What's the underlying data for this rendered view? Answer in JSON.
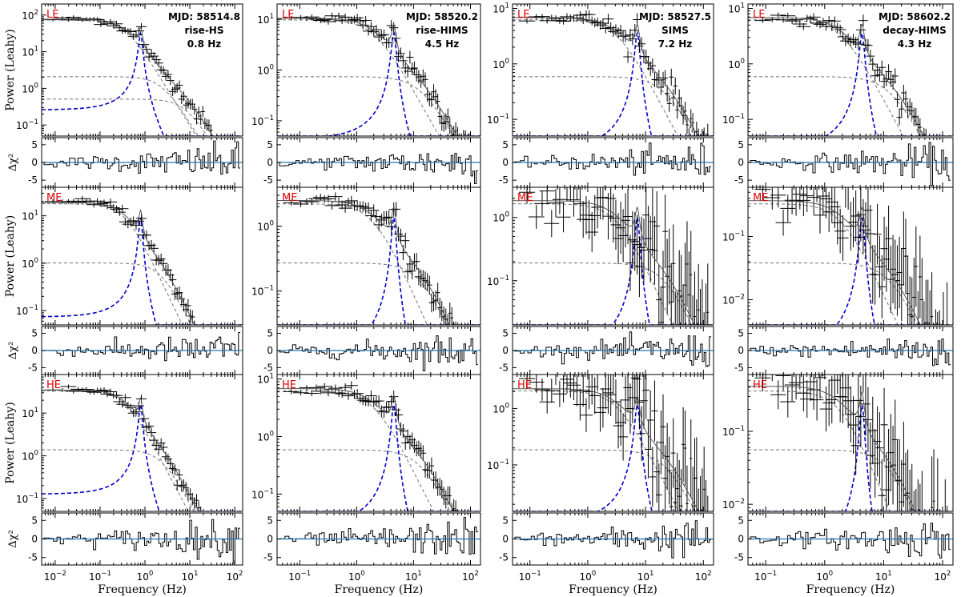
{
  "figure": {
    "columns": [
      {
        "mjd": "MJD: 58514.8",
        "state": "rise-HS",
        "freq": "0.8 Hz"
      },
      {
        "mjd": "MJD: 58520.2",
        "state": "rise-HIMS",
        "freq": "4.5 Hz"
      },
      {
        "mjd": "MJD: 58527.5",
        "state": "SIMS",
        "freq": "7.2 Hz"
      },
      {
        "mjd": "MJD: 58602.2",
        "state": "decay-HIMS",
        "freq": "4.3 Hz"
      }
    ],
    "rows": [
      "LE",
      "ME",
      "HE"
    ],
    "y_label": "Power (Leahy)",
    "resid_label": "Δχ²",
    "x_label": "Frequency (Hz)",
    "colors": {
      "data": "#000000",
      "model": "#808080",
      "qpo": "#0000cc",
      "zero_line": "#1f77b4",
      "row_label": "#dd0000"
    }
  },
  "chart_data": [
    {
      "type": "line",
      "instrument": "LE",
      "column": 1,
      "x_scale": "log",
      "y_scale": "log",
      "xlim": [
        0.005,
        150
      ],
      "ylim": [
        0.05,
        200
      ],
      "y_ticks": [
        "10^{-1}",
        "10^{0}",
        "10^{1}",
        "10^{2}"
      ],
      "x_ticks": [
        "10^{-2}",
        "10^{-1}",
        "10^{0}",
        "10^{1}",
        "10^{2}"
      ],
      "qpo_hz": 0.8,
      "resid_ylim": [
        -7,
        7
      ],
      "resid_ticks": [
        "5",
        "0",
        "-5"
      ]
    },
    {
      "type": "line",
      "instrument": "LE",
      "column": 2,
      "x_scale": "log",
      "y_scale": "log",
      "xlim": [
        0.04,
        150
      ],
      "ylim": [
        0.05,
        20
      ],
      "y_ticks": [
        "10^{-1}",
        "10^{0}",
        "10^{1}"
      ],
      "x_ticks": [
        "10^{-1}",
        "10^{0}",
        "10^{1}",
        "10^{2}"
      ],
      "qpo_hz": 4.5,
      "resid_ylim": [
        -7,
        7
      ],
      "resid_ticks": [
        "5",
        "0",
        "-5"
      ]
    },
    {
      "type": "line",
      "instrument": "LE",
      "column": 3,
      "x_scale": "log",
      "y_scale": "log",
      "xlim": [
        0.05,
        150
      ],
      "ylim": [
        0.05,
        12
      ],
      "y_ticks": [
        "10^{-1}",
        "10^{0}",
        "10^{1}"
      ],
      "x_ticks": [
        "10^{-1}",
        "10^{0}",
        "10^{1}",
        "10^{2}"
      ],
      "qpo_hz": 7.2,
      "resid_ylim": [
        -7,
        7
      ],
      "resid_ticks": [
        "5",
        "0",
        "-5"
      ]
    },
    {
      "type": "line",
      "instrument": "LE",
      "column": 4,
      "x_scale": "log",
      "y_scale": "log",
      "xlim": [
        0.05,
        150
      ],
      "ylim": [
        0.05,
        12
      ],
      "y_ticks": [
        "10^{-1}",
        "10^{0}",
        "10^{1}"
      ],
      "x_ticks": [
        "10^{-1}",
        "10^{0}",
        "10^{1}",
        "10^{2}"
      ],
      "qpo_hz": 4.3,
      "resid_ylim": [
        -7,
        7
      ],
      "resid_ticks": [
        "5",
        "0",
        "-5"
      ]
    },
    {
      "type": "line",
      "instrument": "ME",
      "column": 1,
      "x_scale": "log",
      "y_scale": "log",
      "xlim": [
        0.005,
        150
      ],
      "ylim": [
        0.05,
        40
      ],
      "y_ticks": [
        "10^{-1}",
        "10^{0}",
        "10^{1}"
      ],
      "x_ticks": [
        "10^{-2}",
        "10^{-1}",
        "10^{0}",
        "10^{1}",
        "10^{2}"
      ],
      "qpo_hz": 0.8,
      "resid_ylim": [
        -7,
        7
      ],
      "resid_ticks": [
        "5",
        "0",
        "-5"
      ]
    },
    {
      "type": "line",
      "instrument": "ME",
      "column": 2,
      "x_scale": "log",
      "y_scale": "log",
      "xlim": [
        0.04,
        150
      ],
      "ylim": [
        0.03,
        4
      ],
      "y_ticks": [
        "10^{-1}",
        "10^{0}"
      ],
      "x_ticks": [
        "10^{-1}",
        "10^{0}",
        "10^{1}",
        "10^{2}"
      ],
      "qpo_hz": 4.5,
      "resid_ylim": [
        -7,
        7
      ],
      "resid_ticks": [
        "5",
        "0",
        "-5"
      ]
    },
    {
      "type": "line",
      "instrument": "ME",
      "column": 3,
      "x_scale": "log",
      "y_scale": "log",
      "xlim": [
        0.05,
        150
      ],
      "ylim": [
        0.02,
        3
      ],
      "y_ticks": [
        "10^{-1}",
        "10^{0}"
      ],
      "x_ticks": [
        "10^{-1}",
        "10^{0}",
        "10^{1}",
        "10^{2}"
      ],
      "qpo_hz": 7.2,
      "resid_ylim": [
        -7,
        7
      ],
      "resid_ticks": [
        "5",
        "0",
        "-5"
      ]
    },
    {
      "type": "line",
      "instrument": "ME",
      "column": 4,
      "x_scale": "log",
      "y_scale": "log",
      "xlim": [
        0.05,
        150
      ],
      "ylim": [
        0.004,
        0.6
      ],
      "y_ticks": [
        "10^{-2}",
        "10^{-1}"
      ],
      "x_ticks": [
        "10^{-1}",
        "10^{0}",
        "10^{1}",
        "10^{2}"
      ],
      "qpo_hz": 4.3,
      "resid_ylim": [
        -7,
        7
      ],
      "resid_ticks": [
        "5",
        "0",
        "-5"
      ]
    },
    {
      "type": "line",
      "instrument": "HE",
      "column": 1,
      "x_scale": "log",
      "y_scale": "log",
      "xlim": [
        0.005,
        150
      ],
      "ylim": [
        0.05,
        80
      ],
      "y_ticks": [
        "10^{-1}",
        "10^{0}",
        "10^{1}"
      ],
      "x_ticks": [
        "10^{-2}",
        "10^{-1}",
        "10^{0}",
        "10^{1}",
        "10^{2}"
      ],
      "qpo_hz": 0.8,
      "resid_ylim": [
        -7,
        7
      ],
      "resid_ticks": [
        "5",
        "0",
        "-5"
      ]
    },
    {
      "type": "line",
      "instrument": "HE",
      "column": 2,
      "x_scale": "log",
      "y_scale": "log",
      "xlim": [
        0.04,
        150
      ],
      "ylim": [
        0.05,
        12
      ],
      "y_ticks": [
        "10^{-1}",
        "10^{0}",
        "10^{1}"
      ],
      "x_ticks": [
        "10^{-1}",
        "10^{0}",
        "10^{1}",
        "10^{2}"
      ],
      "qpo_hz": 4.5,
      "resid_ylim": [
        -7,
        7
      ],
      "resid_ticks": [
        "5",
        "0",
        "-5"
      ]
    },
    {
      "type": "line",
      "instrument": "HE",
      "column": 3,
      "x_scale": "log",
      "y_scale": "log",
      "xlim": [
        0.05,
        150
      ],
      "ylim": [
        0.015,
        4
      ],
      "y_ticks": [
        "10^{-1}",
        "10^{0}"
      ],
      "x_ticks": [
        "10^{-1}",
        "10^{0}",
        "10^{1}",
        "10^{2}"
      ],
      "qpo_hz": 7.2,
      "resid_ylim": [
        -7,
        7
      ],
      "resid_ticks": [
        "5",
        "0",
        "-5"
      ]
    },
    {
      "type": "line",
      "instrument": "HE",
      "column": 4,
      "x_scale": "log",
      "y_scale": "log",
      "xlim": [
        0.05,
        150
      ],
      "ylim": [
        0.008,
        0.6
      ],
      "y_ticks": [
        "10^{-2}",
        "10^{-1}"
      ],
      "x_ticks": [
        "10^{-1}",
        "10^{0}",
        "10^{1}",
        "10^{2}"
      ],
      "qpo_hz": 4.3,
      "resid_ylim": [
        -7,
        7
      ],
      "resid_ticks": [
        "5",
        "0",
        "-5"
      ]
    }
  ]
}
